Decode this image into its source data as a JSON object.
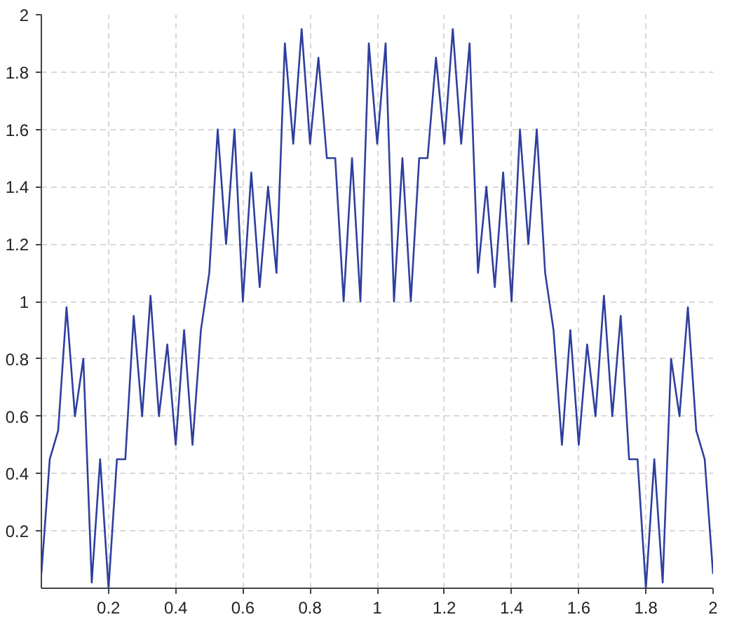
{
  "chart_data": {
    "type": "line",
    "x": [
      0,
      0.025,
      0.05,
      0.075,
      0.1,
      0.125,
      0.15,
      0.175,
      0.2,
      0.225,
      0.25,
      0.275,
      0.3,
      0.325,
      0.35,
      0.375,
      0.4,
      0.425,
      0.45,
      0.475,
      0.5,
      0.525,
      0.55,
      0.575,
      0.6,
      0.625,
      0.65,
      0.675,
      0.7,
      0.725,
      0.75,
      0.775,
      0.8,
      0.825,
      0.85,
      0.875,
      0.9,
      0.925,
      0.95,
      0.975,
      1,
      1.025,
      1.05,
      1.075,
      1.1,
      1.125,
      1.15,
      1.175,
      1.2,
      1.225,
      1.25,
      1.275,
      1.3,
      1.325,
      1.35,
      1.375,
      1.4,
      1.425,
      1.45,
      1.475,
      1.5,
      1.525,
      1.55,
      1.575,
      1.6,
      1.625,
      1.65,
      1.675,
      1.7,
      1.725,
      1.75,
      1.775,
      1.8,
      1.825,
      1.85,
      1.875,
      1.9,
      1.925,
      1.95,
      1.975,
      2
    ],
    "series": [
      {
        "color": "#2e3f9e",
        "values": [
          0.05,
          0.45,
          0.55,
          0.98,
          0.6,
          0.8,
          0.02,
          0.45,
          0.0,
          0.45,
          0.45,
          0.95,
          0.6,
          1.02,
          0.6,
          0.85,
          0.5,
          0.9,
          0.5,
          0.9,
          1.1,
          1.6,
          1.2,
          1.6,
          1.0,
          1.45,
          1.05,
          1.4,
          1.1,
          1.9,
          1.55,
          1.95,
          1.55,
          1.85,
          1.5,
          1.5,
          1.0,
          1.5,
          1.0,
          1.9,
          1.55,
          1.9,
          1.0,
          1.5,
          1.0,
          1.5,
          1.5,
          1.85,
          1.55,
          1.95,
          1.55,
          1.9,
          1.1,
          1.4,
          1.05,
          1.45,
          1.0,
          1.6,
          1.2,
          1.6,
          1.1,
          0.9,
          0.5,
          0.9,
          0.5,
          0.85,
          0.6,
          1.02,
          0.6,
          0.95,
          0.45,
          0.45,
          0.0,
          0.45,
          0.02,
          0.8,
          0.6,
          0.98,
          0.55,
          0.45,
          0.05
        ]
      }
    ],
    "xlim": [
      0,
      2
    ],
    "ylim": [
      0,
      2
    ],
    "xticks": [
      0.2,
      0.4,
      0.6,
      0.8,
      1,
      1.2,
      1.4,
      1.6,
      1.8,
      2
    ],
    "yticks": [
      0.2,
      0.4,
      0.6,
      0.8,
      1,
      1.2,
      1.4,
      1.6,
      1.8,
      2
    ],
    "grid": true,
    "line_style": "solid"
  }
}
